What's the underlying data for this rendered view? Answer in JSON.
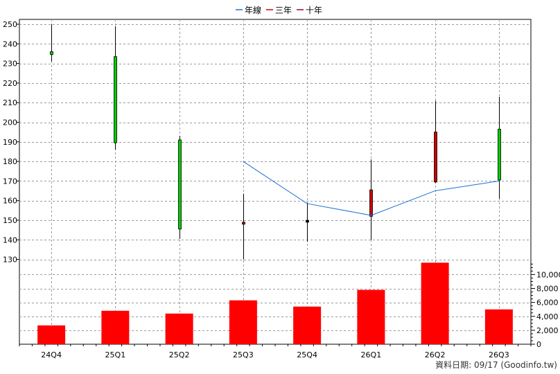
{
  "legend": {
    "items": [
      {
        "label": "年線",
        "color": "#1a6ed8"
      },
      {
        "label": "三年",
        "color": "#cc0000"
      },
      {
        "label": "十年",
        "color": "#990033"
      }
    ]
  },
  "footer": {
    "text": "資料日期: 09/17  (Goodinfo.tw)"
  },
  "chart_data": {
    "type": "candlestick",
    "categories": [
      "24Q4",
      "25Q1",
      "25Q2",
      "25Q3",
      "25Q4",
      "26Q1",
      "26Q2",
      "26Q3"
    ],
    "price_axis": {
      "ylim": [
        125,
        253
      ],
      "ticks": [
        130,
        140,
        150,
        160,
        170,
        180,
        190,
        200,
        210,
        220,
        230,
        240,
        250
      ]
    },
    "volume_axis": {
      "ylim": [
        0,
        12000
      ],
      "ticks": [
        0,
        2000,
        4000,
        6000,
        8000,
        10000
      ],
      "tick_labels": [
        "0",
        "2,000",
        "4,000",
        "6,000",
        "8,000",
        "10,000"
      ]
    },
    "ohlc": [
      {
        "open": 236,
        "high": 250,
        "low": 231,
        "close": 234.5,
        "color": "green"
      },
      {
        "open": 233.5,
        "high": 249,
        "low": 186,
        "close": 189.5,
        "color": "green"
      },
      {
        "open": 191,
        "high": 193,
        "low": 140.5,
        "close": 145.5,
        "color": "green"
      },
      {
        "open": 148,
        "high": 163.5,
        "low": 130,
        "close": 149,
        "color": "red"
      },
      {
        "open": 149,
        "high": 159,
        "low": 139,
        "close": 150,
        "color": "black"
      },
      {
        "open": 152,
        "high": 181,
        "low": 140,
        "close": 165.5,
        "color": "red"
      },
      {
        "open": 169.5,
        "high": 211,
        "low": 169,
        "close": 195,
        "color": "red"
      },
      {
        "open": 196.5,
        "high": 213,
        "low": 161,
        "close": 170.5,
        "color": "green"
      }
    ],
    "series": [
      {
        "name": "年線",
        "values": [
          null,
          null,
          null,
          180,
          158.5,
          152.5,
          165,
          170
        ]
      }
    ],
    "volume": [
      2700,
      4800,
      4400,
      6300,
      5400,
      7800,
      11700,
      5000
    ]
  }
}
